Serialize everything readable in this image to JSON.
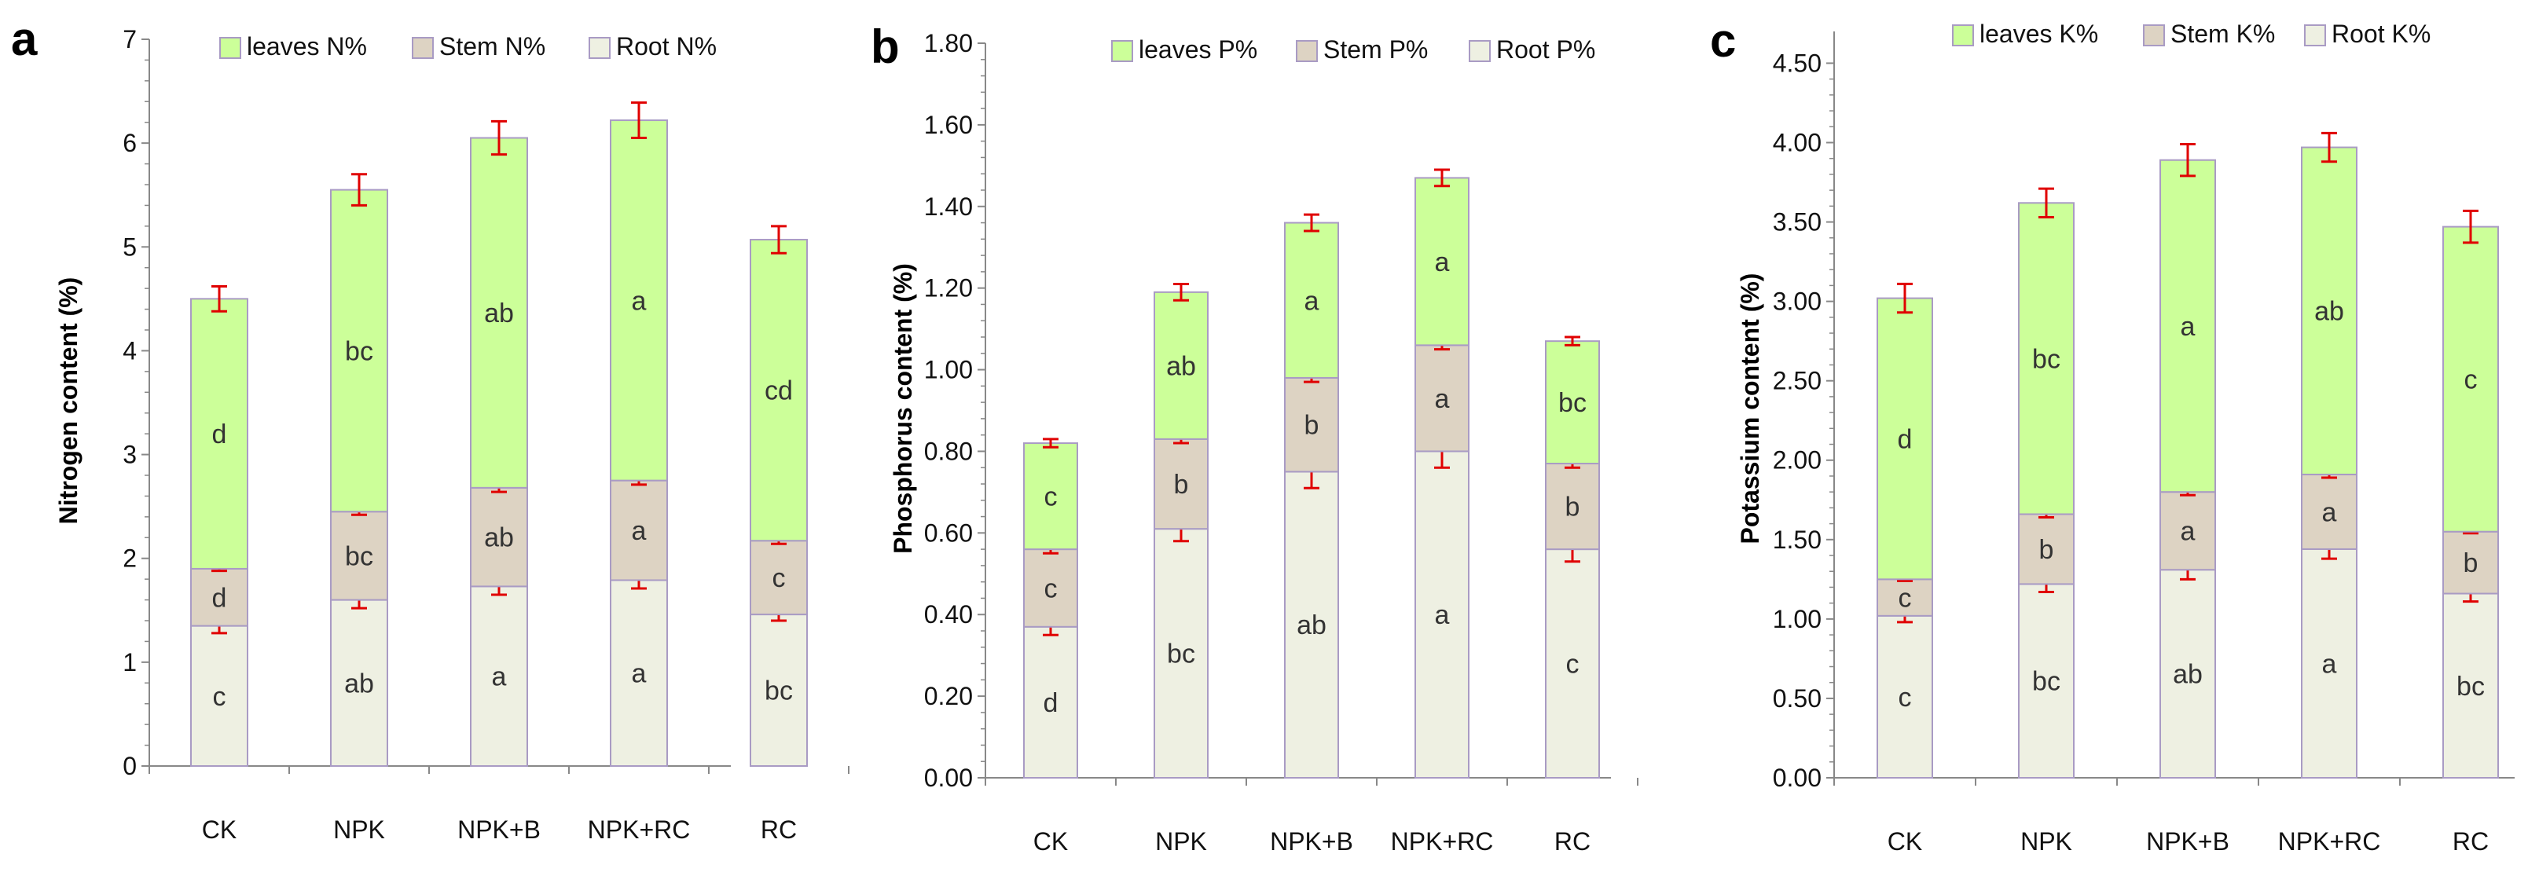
{
  "chart_data": [
    {
      "panel": "a",
      "type": "bar",
      "stacked": true,
      "ylabel": "Nitrogen content (%)",
      "ylim": [
        0,
        7
      ],
      "ystep": 1,
      "ydecimals": 0,
      "categories": [
        "CK",
        "NPK",
        "NPK+B",
        "NPK+RC",
        "RC"
      ],
      "series": [
        {
          "name": "Root N%",
          "color": "#eef0e2",
          "values": [
            1.35,
            1.6,
            1.73,
            1.79,
            1.46
          ],
          "errors": [
            0.07,
            0.08,
            0.08,
            0.08,
            0.06
          ],
          "letters": [
            "c",
            "ab",
            "a",
            "a",
            "bc"
          ]
        },
        {
          "name": "Stem N%",
          "color": "#ddd3c3",
          "values": [
            0.55,
            0.85,
            0.95,
            0.96,
            0.71
          ],
          "errors": [
            0.02,
            0.03,
            0.04,
            0.04,
            0.03
          ],
          "letters": [
            "d",
            "bc",
            "ab",
            "a",
            "c"
          ]
        },
        {
          "name": "leaves N%",
          "color": "#ccff99",
          "values": [
            2.6,
            3.1,
            3.37,
            3.47,
            2.9
          ],
          "errors": [
            0.12,
            0.15,
            0.16,
            0.17,
            0.13
          ],
          "letters": [
            "d",
            "bc",
            "ab",
            "a",
            "cd"
          ]
        }
      ],
      "legend": [
        "leaves N%",
        "Stem N%",
        "Root N%"
      ],
      "legend_position": "top"
    },
    {
      "panel": "b",
      "type": "bar",
      "stacked": true,
      "ylabel": "Phosphorus content (%)",
      "ylim": [
        0,
        1.8
      ],
      "ystep": 0.2,
      "ydecimals": 2,
      "categories": [
        "CK",
        "NPK",
        "NPK+B",
        "NPK+RC",
        "RC"
      ],
      "series": [
        {
          "name": "Root P%",
          "color": "#eef0e2",
          "values": [
            0.37,
            0.61,
            0.75,
            0.8,
            0.56
          ],
          "errors": [
            0.02,
            0.03,
            0.04,
            0.04,
            0.03
          ],
          "letters": [
            "d",
            "bc",
            "ab",
            "a",
            "c"
          ]
        },
        {
          "name": "Stem P%",
          "color": "#ddd3c3",
          "values": [
            0.19,
            0.22,
            0.23,
            0.26,
            0.21
          ],
          "errors": [
            0.01,
            0.01,
            0.01,
            0.01,
            0.01
          ],
          "letters": [
            "c",
            "b",
            "b",
            "a",
            "b"
          ]
        },
        {
          "name": "leaves P%",
          "color": "#ccff99",
          "values": [
            0.26,
            0.36,
            0.38,
            0.41,
            0.3
          ],
          "errors": [
            0.01,
            0.02,
            0.02,
            0.02,
            0.01
          ],
          "letters": [
            "c",
            "ab",
            "a",
            "a",
            "bc"
          ]
        }
      ],
      "legend": [
        "leaves P%",
        "Stem P%",
        "Root P%"
      ],
      "legend_position": "top"
    },
    {
      "panel": "c",
      "type": "bar",
      "stacked": true,
      "ylabel": "Potassium content (%)",
      "ylim": [
        0,
        4.7
      ],
      "ystep": 0.5,
      "ydecimals": 2,
      "categories": [
        "CK",
        "NPK",
        "NPK+B",
        "NPK+RC",
        "RC"
      ],
      "series": [
        {
          "name": "Root K%",
          "color": "#eef0e2",
          "values": [
            1.02,
            1.22,
            1.31,
            1.44,
            1.16
          ],
          "errors": [
            0.04,
            0.05,
            0.06,
            0.06,
            0.05
          ],
          "letters": [
            "c",
            "bc",
            "ab",
            "a",
            "bc"
          ]
        },
        {
          "name": "Stem K%",
          "color": "#ddd3c3",
          "values": [
            0.23,
            0.44,
            0.49,
            0.47,
            0.39
          ],
          "errors": [
            0.01,
            0.02,
            0.02,
            0.02,
            0.01
          ],
          "letters": [
            "c",
            "b",
            "a",
            "a",
            "b"
          ]
        },
        {
          "name": "leaves K%",
          "color": "#ccff99",
          "values": [
            1.77,
            1.96,
            2.09,
            2.06,
            1.92
          ],
          "errors": [
            0.09,
            0.09,
            0.1,
            0.09,
            0.1
          ],
          "letters": [
            "d",
            "bc",
            "a",
            "ab",
            "c"
          ]
        }
      ],
      "legend": [
        "leaves K%",
        "Stem K%",
        "Root K%"
      ],
      "legend_position": "top"
    }
  ],
  "colors": {
    "bar_border": "#a99bc4",
    "error_bar": "#e00000",
    "axis": "#888888",
    "text": "#111111"
  }
}
